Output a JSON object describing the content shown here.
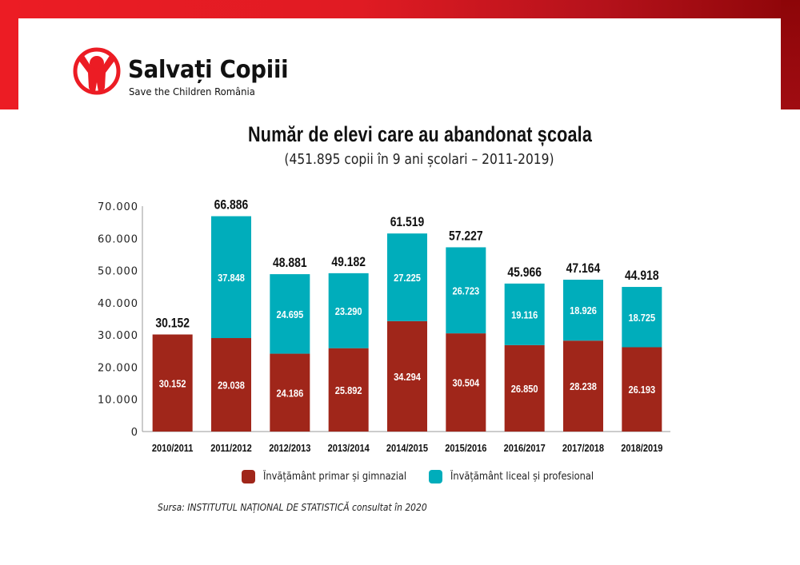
{
  "brand": {
    "name": "Salvați Copiii",
    "tagline": "Save the Children România",
    "logo_icon": "child-arms-raised-icon",
    "colors": {
      "brand_red": "#ec1c24",
      "frame_dark_red": "#8d0508"
    }
  },
  "chart_data": {
    "type": "bar",
    "stacked": true,
    "title": "Număr de elevi care au abandonat școala",
    "subtitle": "(451.895 copii în 9 ani școlari – 2011-2019)",
    "xlabel": "",
    "ylabel": "",
    "ylim": [
      0,
      70000
    ],
    "yticks": [
      0,
      10000,
      20000,
      30000,
      40000,
      50000,
      60000,
      70000
    ],
    "ytick_labels": [
      "0",
      "10.000",
      "20.000",
      "30.000",
      "40.000",
      "50.000",
      "60.000",
      "70.000"
    ],
    "grid": false,
    "legend_position": "bottom",
    "categories": [
      "2010/2011",
      "2011/2012",
      "2012/2013",
      "2013/2014",
      "2014/2015",
      "2015/2016",
      "2016/2017",
      "2017/2018",
      "2018/2019"
    ],
    "series": [
      {
        "name": "Învățământ primar și gimnazial",
        "color": "#a0261a",
        "values": [
          30152,
          29038,
          24186,
          25892,
          34294,
          30504,
          26850,
          28238,
          26193
        ],
        "labels": [
          "30.152",
          "29.038",
          "24.186",
          "25.892",
          "34.294",
          "30.504",
          "26.850",
          "28.238",
          "26.193"
        ]
      },
      {
        "name": "Învățământ liceal și profesional",
        "color": "#00adbb",
        "values": [
          0,
          37848,
          24695,
          23290,
          27225,
          26723,
          19116,
          18926,
          18725
        ],
        "labels": [
          "",
          "37.848",
          "24.695",
          "23.290",
          "27.225",
          "26.723",
          "19.116",
          "18.926",
          "18.725"
        ]
      }
    ],
    "totals": [
      30152,
      66886,
      48881,
      49182,
      61519,
      57227,
      45966,
      47164,
      44918
    ],
    "total_labels": [
      "30.152",
      "66.886",
      "48.881",
      "49.182",
      "61.519",
      "57.227",
      "45.966",
      "47.164",
      "44.918"
    ]
  },
  "source_note": "Sursa: INSTITUTUL NAȚIONAL DE STATISTICĂ consultat în 2020"
}
